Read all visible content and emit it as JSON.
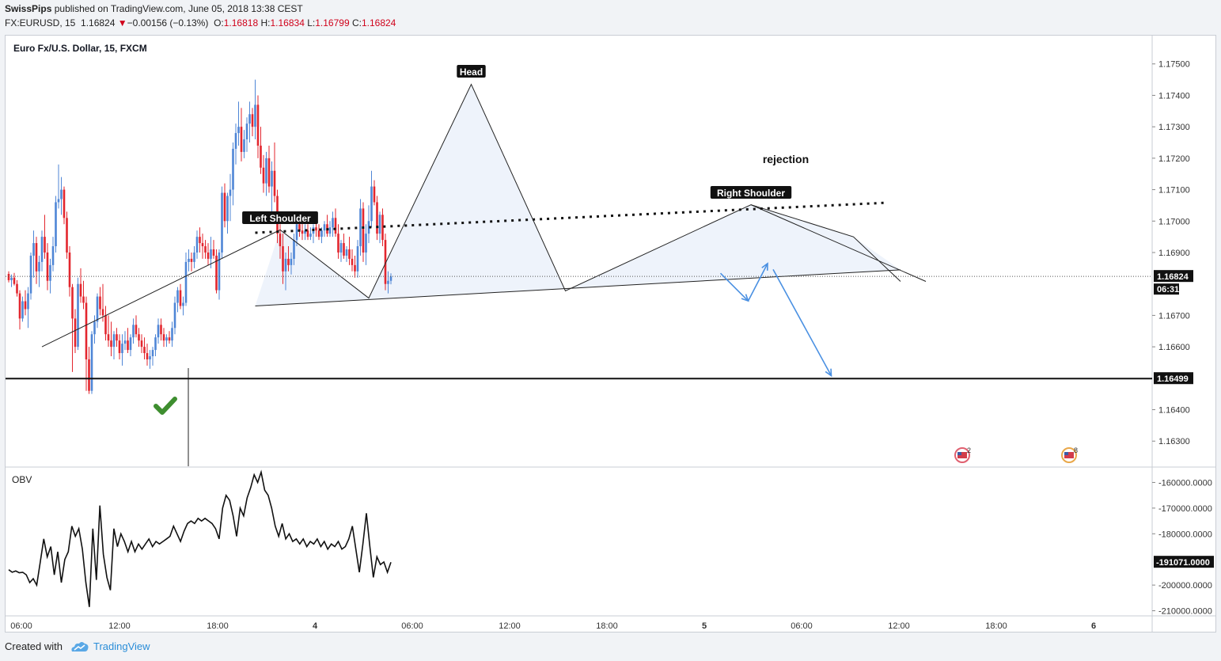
{
  "header": {
    "author": "SwissPips",
    "published": "published on TradingView.com, June 05, 2018 13:38 CEST",
    "symbol": "FX:EURUSD, 15",
    "last": "1.16824",
    "change": "−0.00156 (−0.13%)",
    "change_direction": "down",
    "o_label": "O:",
    "o_value": "1.16818",
    "h_label": "H:",
    "h_value": "1.16834",
    "l_label": "L:",
    "l_value": "1.16799",
    "c_label": "C:",
    "c_value": "1.16824"
  },
  "footer": {
    "created_with": "Created with",
    "brand": "TradingView"
  },
  "chart_data": {
    "type": "candlestick",
    "title": "Euro Fx/U.S. Dollar, 15, FXCM",
    "colors": {
      "up": "#4f86d6",
      "down": "#e3262e",
      "pattern_fill": "#eef3fb",
      "arrow": "#4a90e2",
      "check": "#3e8e2f"
    },
    "ylim": [
      1.1622,
      1.1759
    ],
    "y_ticks": [
      "1.17500",
      "1.17400",
      "1.17300",
      "1.17200",
      "1.17100",
      "1.17000",
      "1.16900",
      "1.16700",
      "1.16600",
      "1.16400",
      "1.16300"
    ],
    "x_ticks": [
      "06:00",
      "12:00",
      "18:00",
      "4",
      "06:00",
      "12:00",
      "18:00",
      "5",
      "06:00",
      "12:00",
      "18:00",
      "6"
    ],
    "price_label": "1.16824",
    "countdown": "06:31",
    "support_label": "1.16499",
    "support_level": 1.16499,
    "annotations": [
      "Head",
      "Left Shoulder",
      "Right Shoulder",
      "rejection"
    ],
    "event_markers": [
      "2",
      "8"
    ],
    "pattern_points": [
      {
        "bar": 12,
        "price": 1.166
      },
      {
        "bar": 98,
        "price": 1.16972
      },
      {
        "bar": 130,
        "price": 1.16755
      },
      {
        "bar": 167,
        "price": 1.17435
      },
      {
        "bar": 201,
        "price": 1.16778
      },
      {
        "bar": 268,
        "price": 1.17052
      },
      {
        "bar": 305,
        "price": 1.1695
      },
      {
        "bar": 322,
        "price": 1.16808
      }
    ],
    "neckline": [
      {
        "bar": 89,
        "price": 1.1673
      },
      {
        "bar": 322,
        "price": 1.16845
      }
    ],
    "dotted_line": [
      {
        "bar": 89,
        "price": 1.16963
      },
      {
        "bar": 316,
        "price": 1.17058
      }
    ],
    "arrows": [
      {
        "from": {
          "bar": 257,
          "price": 1.16834
        },
        "to": {
          "bar": 267,
          "price": 1.16746
        }
      },
      {
        "from": {
          "bar": 267,
          "price": 1.16746
        },
        "to": {
          "bar": 274,
          "price": 1.16865
        }
      },
      {
        "from": {
          "bar": 276,
          "price": 1.16846
        },
        "to": {
          "bar": 297,
          "price": 1.16508
        }
      }
    ],
    "check_mark": {
      "bar": 0,
      "price": 1.1642
    },
    "candles": [
      {
        "o": 1.16832,
        "h": 1.1684,
        "l": 1.16805,
        "c": 1.16812
      },
      {
        "o": 1.16812,
        "h": 1.1683,
        "l": 1.1679,
        "c": 1.1682
      },
      {
        "o": 1.1682,
        "h": 1.16835,
        "l": 1.16795,
        "c": 1.168
      },
      {
        "o": 1.168,
        "h": 1.16812,
        "l": 1.1676,
        "c": 1.1677
      },
      {
        "o": 1.1677,
        "h": 1.1678,
        "l": 1.16655,
        "c": 1.1669
      },
      {
        "o": 1.1669,
        "h": 1.1676,
        "l": 1.1668,
        "c": 1.16745
      },
      {
        "o": 1.16745,
        "h": 1.1678,
        "l": 1.167,
        "c": 1.1672
      },
      {
        "o": 1.1672,
        "h": 1.1679,
        "l": 1.1666,
        "c": 1.1677
      },
      {
        "o": 1.1677,
        "h": 1.169,
        "l": 1.1675,
        "c": 1.1689
      },
      {
        "o": 1.1689,
        "h": 1.1697,
        "l": 1.1682,
        "c": 1.1693
      },
      {
        "o": 1.1693,
        "h": 1.1695,
        "l": 1.168,
        "c": 1.1684
      },
      {
        "o": 1.1684,
        "h": 1.1689,
        "l": 1.1679,
        "c": 1.1687
      },
      {
        "o": 1.1687,
        "h": 1.1697,
        "l": 1.1684,
        "c": 1.1695
      },
      {
        "o": 1.1695,
        "h": 1.1702,
        "l": 1.1688,
        "c": 1.169
      },
      {
        "o": 1.169,
        "h": 1.1693,
        "l": 1.1678,
        "c": 1.1681
      },
      {
        "o": 1.1681,
        "h": 1.1688,
        "l": 1.1677,
        "c": 1.1686
      },
      {
        "o": 1.1686,
        "h": 1.1695,
        "l": 1.1684,
        "c": 1.1692
      },
      {
        "o": 1.1692,
        "h": 1.1708,
        "l": 1.169,
        "c": 1.1706
      },
      {
        "o": 1.1706,
        "h": 1.1718,
        "l": 1.1704,
        "c": 1.1707
      },
      {
        "o": 1.1707,
        "h": 1.1714,
        "l": 1.1702,
        "c": 1.171
      },
      {
        "o": 1.171,
        "h": 1.1711,
        "l": 1.1699,
        "c": 1.1701
      },
      {
        "o": 1.1701,
        "h": 1.1703,
        "l": 1.1688,
        "c": 1.169
      },
      {
        "o": 1.169,
        "h": 1.1692,
        "l": 1.1676,
        "c": 1.1679
      },
      {
        "o": 1.1679,
        "h": 1.168,
        "l": 1.1652,
        "c": 1.1669
      },
      {
        "o": 1.1669,
        "h": 1.1672,
        "l": 1.1658,
        "c": 1.166
      },
      {
        "o": 1.166,
        "h": 1.1682,
        "l": 1.1659,
        "c": 1.168
      },
      {
        "o": 1.168,
        "h": 1.1685,
        "l": 1.1674,
        "c": 1.1676
      },
      {
        "o": 1.1676,
        "h": 1.1681,
        "l": 1.1672,
        "c": 1.1674
      },
      {
        "o": 1.1674,
        "h": 1.1676,
        "l": 1.1646,
        "c": 1.1656
      },
      {
        "o": 1.1656,
        "h": 1.166,
        "l": 1.1645,
        "c": 1.1646
      },
      {
        "o": 1.1646,
        "h": 1.1665,
        "l": 1.1645,
        "c": 1.1664
      },
      {
        "o": 1.1664,
        "h": 1.167,
        "l": 1.1661,
        "c": 1.1668
      },
      {
        "o": 1.1668,
        "h": 1.1677,
        "l": 1.1666,
        "c": 1.1676
      },
      {
        "o": 1.1676,
        "h": 1.1679,
        "l": 1.167,
        "c": 1.1672
      },
      {
        "o": 1.1672,
        "h": 1.168,
        "l": 1.1668,
        "c": 1.167
      },
      {
        "o": 1.167,
        "h": 1.1673,
        "l": 1.1662,
        "c": 1.1664
      },
      {
        "o": 1.1664,
        "h": 1.167,
        "l": 1.166,
        "c": 1.1662
      },
      {
        "o": 1.1662,
        "h": 1.1668,
        "l": 1.1657,
        "c": 1.166
      },
      {
        "o": 1.166,
        "h": 1.1665,
        "l": 1.1656,
        "c": 1.1664
      },
      {
        "o": 1.1664,
        "h": 1.1666,
        "l": 1.166,
        "c": 1.1662
      },
      {
        "o": 1.1662,
        "h": 1.1664,
        "l": 1.1656,
        "c": 1.1658
      },
      {
        "o": 1.1658,
        "h": 1.1664,
        "l": 1.1654,
        "c": 1.1661
      },
      {
        "o": 1.1661,
        "h": 1.1665,
        "l": 1.1659,
        "c": 1.1662
      },
      {
        "o": 1.1662,
        "h": 1.1666,
        "l": 1.1658,
        "c": 1.1659
      },
      {
        "o": 1.1659,
        "h": 1.1664,
        "l": 1.1657,
        "c": 1.1663
      },
      {
        "o": 1.1663,
        "h": 1.1669,
        "l": 1.1661,
        "c": 1.1667
      },
      {
        "o": 1.1667,
        "h": 1.167,
        "l": 1.1663,
        "c": 1.1664
      },
      {
        "o": 1.1664,
        "h": 1.1666,
        "l": 1.166,
        "c": 1.1662
      },
      {
        "o": 1.1662,
        "h": 1.1664,
        "l": 1.1658,
        "c": 1.166
      },
      {
        "o": 1.166,
        "h": 1.1663,
        "l": 1.1656,
        "c": 1.1658
      },
      {
        "o": 1.1658,
        "h": 1.1661,
        "l": 1.1654,
        "c": 1.1656
      },
      {
        "o": 1.1656,
        "h": 1.1659,
        "l": 1.1653,
        "c": 1.1657
      },
      {
        "o": 1.1657,
        "h": 1.166,
        "l": 1.1654,
        "c": 1.1659
      },
      {
        "o": 1.1659,
        "h": 1.1664,
        "l": 1.1657,
        "c": 1.1663
      },
      {
        "o": 1.1663,
        "h": 1.1669,
        "l": 1.1661,
        "c": 1.1667
      },
      {
        "o": 1.1667,
        "h": 1.1669,
        "l": 1.1662,
        "c": 1.1664
      },
      {
        "o": 1.1664,
        "h": 1.1666,
        "l": 1.166,
        "c": 1.1662
      },
      {
        "o": 1.1662,
        "h": 1.1664,
        "l": 1.166,
        "c": 1.1663
      },
      {
        "o": 1.1663,
        "h": 1.1665,
        "l": 1.1661,
        "c": 1.1662
      },
      {
        "o": 1.1662,
        "h": 1.1668,
        "l": 1.166,
        "c": 1.1666
      },
      {
        "o": 1.1666,
        "h": 1.1676,
        "l": 1.1664,
        "c": 1.1674
      },
      {
        "o": 1.1674,
        "h": 1.1679,
        "l": 1.1671,
        "c": 1.1678
      },
      {
        "o": 1.1678,
        "h": 1.168,
        "l": 1.1672,
        "c": 1.1673
      },
      {
        "o": 1.1673,
        "h": 1.1676,
        "l": 1.167,
        "c": 1.1674
      },
      {
        "o": 1.1674,
        "h": 1.169,
        "l": 1.1673,
        "c": 1.1687
      },
      {
        "o": 1.1687,
        "h": 1.1691,
        "l": 1.1684,
        "c": 1.1688
      },
      {
        "o": 1.1688,
        "h": 1.169,
        "l": 1.1684,
        "c": 1.1687
      },
      {
        "o": 1.1687,
        "h": 1.1692,
        "l": 1.1685,
        "c": 1.169
      },
      {
        "o": 1.169,
        "h": 1.1697,
        "l": 1.1688,
        "c": 1.1695
      },
      {
        "o": 1.1695,
        "h": 1.1698,
        "l": 1.169,
        "c": 1.1693
      },
      {
        "o": 1.1693,
        "h": 1.1696,
        "l": 1.1688,
        "c": 1.1692
      },
      {
        "o": 1.1692,
        "h": 1.1694,
        "l": 1.1688,
        "c": 1.169
      },
      {
        "o": 1.169,
        "h": 1.1693,
        "l": 1.1686,
        "c": 1.1688
      },
      {
        "o": 1.1688,
        "h": 1.1695,
        "l": 1.1685,
        "c": 1.1691
      },
      {
        "o": 1.1691,
        "h": 1.1694,
        "l": 1.1688,
        "c": 1.1689
      },
      {
        "o": 1.1689,
        "h": 1.1691,
        "l": 1.1677,
        "c": 1.1678
      },
      {
        "o": 1.1678,
        "h": 1.1691,
        "l": 1.1675,
        "c": 1.169
      },
      {
        "o": 1.169,
        "h": 1.1711,
        "l": 1.1688,
        "c": 1.1709
      },
      {
        "o": 1.1709,
        "h": 1.1712,
        "l": 1.1698,
        "c": 1.17
      },
      {
        "o": 1.17,
        "h": 1.1709,
        "l": 1.1696,
        "c": 1.1708
      },
      {
        "o": 1.1708,
        "h": 1.1715,
        "l": 1.17,
        "c": 1.171
      },
      {
        "o": 1.171,
        "h": 1.1725,
        "l": 1.1705,
        "c": 1.1723
      },
      {
        "o": 1.1723,
        "h": 1.1731,
        "l": 1.1718,
        "c": 1.1728
      },
      {
        "o": 1.1728,
        "h": 1.1738,
        "l": 1.1724,
        "c": 1.173
      },
      {
        "o": 1.173,
        "h": 1.1736,
        "l": 1.1719,
        "c": 1.1722
      },
      {
        "o": 1.1722,
        "h": 1.1729,
        "l": 1.172,
        "c": 1.1726
      },
      {
        "o": 1.1726,
        "h": 1.1733,
        "l": 1.1722,
        "c": 1.1731
      },
      {
        "o": 1.1731,
        "h": 1.1738,
        "l": 1.1725,
        "c": 1.1734
      },
      {
        "o": 1.1734,
        "h": 1.1736,
        "l": 1.1727,
        "c": 1.173
      },
      {
        "o": 1.173,
        "h": 1.1745,
        "l": 1.1726,
        "c": 1.1737
      },
      {
        "o": 1.1737,
        "h": 1.174,
        "l": 1.172,
        "c": 1.1724
      },
      {
        "o": 1.1724,
        "h": 1.173,
        "l": 1.1715,
        "c": 1.1717
      },
      {
        "o": 1.1717,
        "h": 1.1721,
        "l": 1.1709,
        "c": 1.1712
      },
      {
        "o": 1.1712,
        "h": 1.1722,
        "l": 1.1708,
        "c": 1.172
      },
      {
        "o": 1.172,
        "h": 1.1724,
        "l": 1.1709,
        "c": 1.1711
      },
      {
        "o": 1.1711,
        "h": 1.1719,
        "l": 1.1703,
        "c": 1.1716
      },
      {
        "o": 1.1716,
        "h": 1.1725,
        "l": 1.1706,
        "c": 1.1708
      },
      {
        "o": 1.1708,
        "h": 1.171,
        "l": 1.1693,
        "c": 1.1696
      },
      {
        "o": 1.1696,
        "h": 1.1699,
        "l": 1.1688,
        "c": 1.1692
      },
      {
        "o": 1.1692,
        "h": 1.1696,
        "l": 1.168,
        "c": 1.1684
      },
      {
        "o": 1.1684,
        "h": 1.169,
        "l": 1.1678,
        "c": 1.1688
      },
      {
        "o": 1.1688,
        "h": 1.1692,
        "l": 1.1684,
        "c": 1.1686
      },
      {
        "o": 1.1686,
        "h": 1.169,
        "l": 1.1683,
        "c": 1.1688
      },
      {
        "o": 1.1688,
        "h": 1.1696,
        "l": 1.1686,
        "c": 1.1694
      },
      {
        "o": 1.1694,
        "h": 1.1701,
        "l": 1.1692,
        "c": 1.1699
      },
      {
        "o": 1.1699,
        "h": 1.1703,
        "l": 1.1695,
        "c": 1.1697
      },
      {
        "o": 1.1697,
        "h": 1.17,
        "l": 1.1694,
        "c": 1.1696
      },
      {
        "o": 1.1696,
        "h": 1.1699,
        "l": 1.1694,
        "c": 1.1697
      },
      {
        "o": 1.1697,
        "h": 1.1699,
        "l": 1.1694,
        "c": 1.1695
      },
      {
        "o": 1.1695,
        "h": 1.1698,
        "l": 1.1694,
        "c": 1.1696
      },
      {
        "o": 1.1696,
        "h": 1.1699,
        "l": 1.1693,
        "c": 1.1698
      },
      {
        "o": 1.1698,
        "h": 1.1702,
        "l": 1.1695,
        "c": 1.1697
      },
      {
        "o": 1.1697,
        "h": 1.1699,
        "l": 1.1694,
        "c": 1.1695
      },
      {
        "o": 1.1695,
        "h": 1.1698,
        "l": 1.1693,
        "c": 1.1697
      },
      {
        "o": 1.1697,
        "h": 1.17,
        "l": 1.1695,
        "c": 1.1699
      },
      {
        "o": 1.1699,
        "h": 1.1702,
        "l": 1.1695,
        "c": 1.1696
      },
      {
        "o": 1.1696,
        "h": 1.17,
        "l": 1.1695,
        "c": 1.1698
      },
      {
        "o": 1.1698,
        "h": 1.1703,
        "l": 1.1695,
        "c": 1.1701
      },
      {
        "o": 1.1701,
        "h": 1.1704,
        "l": 1.1695,
        "c": 1.1696
      },
      {
        "o": 1.1696,
        "h": 1.1699,
        "l": 1.1688,
        "c": 1.169
      },
      {
        "o": 1.169,
        "h": 1.1694,
        "l": 1.1687,
        "c": 1.1693
      },
      {
        "o": 1.1693,
        "h": 1.1696,
        "l": 1.1688,
        "c": 1.1689
      },
      {
        "o": 1.1689,
        "h": 1.1692,
        "l": 1.1687,
        "c": 1.1691
      },
      {
        "o": 1.1691,
        "h": 1.1695,
        "l": 1.1686,
        "c": 1.1688
      },
      {
        "o": 1.1688,
        "h": 1.1691,
        "l": 1.1684,
        "c": 1.1686
      },
      {
        "o": 1.1686,
        "h": 1.1689,
        "l": 1.1682,
        "c": 1.1684
      },
      {
        "o": 1.1684,
        "h": 1.1694,
        "l": 1.1682,
        "c": 1.1692
      },
      {
        "o": 1.1692,
        "h": 1.1707,
        "l": 1.1689,
        "c": 1.1704
      },
      {
        "o": 1.1704,
        "h": 1.1706,
        "l": 1.1687,
        "c": 1.169
      },
      {
        "o": 1.169,
        "h": 1.1699,
        "l": 1.1686,
        "c": 1.1696
      },
      {
        "o": 1.1696,
        "h": 1.1705,
        "l": 1.1693,
        "c": 1.17
      },
      {
        "o": 1.17,
        "h": 1.1716,
        "l": 1.1698,
        "c": 1.1711
      },
      {
        "o": 1.1711,
        "h": 1.1713,
        "l": 1.1705,
        "c": 1.1706
      },
      {
        "o": 1.1706,
        "h": 1.1708,
        "l": 1.1694,
        "c": 1.1696
      },
      {
        "o": 1.1696,
        "h": 1.1703,
        "l": 1.1693,
        "c": 1.1702
      },
      {
        "o": 1.1702,
        "h": 1.1704,
        "l": 1.1692,
        "c": 1.1694
      },
      {
        "o": 1.1694,
        "h": 1.1696,
        "l": 1.1678,
        "c": 1.168
      },
      {
        "o": 1.168,
        "h": 1.1684,
        "l": 1.1677,
        "c": 1.1681
      },
      {
        "o": 1.1681,
        "h": 1.16834,
        "l": 1.16799,
        "c": 1.16824
      }
    ],
    "obv": {
      "label": "OBV",
      "ylim": [
        -212000,
        -154000
      ],
      "y_ticks": [
        "-160000.0000",
        "-170000.0000",
        "-180000.0000",
        "-200000.0000",
        "-210000.0000"
      ],
      "last_label": "-191071.0000",
      "values": [
        -194000,
        -195000,
        -194500,
        -195200,
        -195000,
        -196000,
        -199000,
        -197500,
        -200000,
        -191000,
        -182000,
        -189000,
        -185000,
        -196000,
        -187000,
        -199000,
        -190000,
        -187000,
        -177000,
        -181000,
        -178000,
        -186000,
        -199000,
        -208500,
        -178000,
        -198000,
        -169000,
        -188000,
        -197000,
        -202000,
        -178000,
        -185000,
        -180000,
        -183000,
        -187000,
        -183000,
        -187000,
        -184000,
        -186000,
        -184000,
        -182000,
        -185000,
        -183000,
        -184000,
        -183000,
        -182000,
        -181000,
        -177000,
        -180000,
        -183000,
        -179000,
        -176000,
        -175000,
        -176000,
        -174000,
        -175000,
        -174000,
        -175000,
        -176000,
        -178000,
        -182000,
        -170000,
        -165000,
        -167000,
        -173000,
        -181000,
        -170000,
        -173000,
        -166000,
        -162000,
        -157000,
        -160000,
        -156000,
        -163000,
        -165000,
        -170000,
        -177000,
        -181000,
        -176000,
        -182000,
        -180000,
        -183000,
        -182000,
        -184000,
        -182000,
        -185000,
        -183000,
        -184000,
        -182000,
        -185000,
        -183000,
        -186000,
        -184000,
        -185000,
        -183000,
        -186000,
        -185000,
        -182000,
        -177000,
        -186000,
        -195000,
        -184000,
        -172000,
        -185000,
        -197000,
        -189000,
        -192000,
        -191000,
        -195000,
        -191071
      ]
    }
  }
}
